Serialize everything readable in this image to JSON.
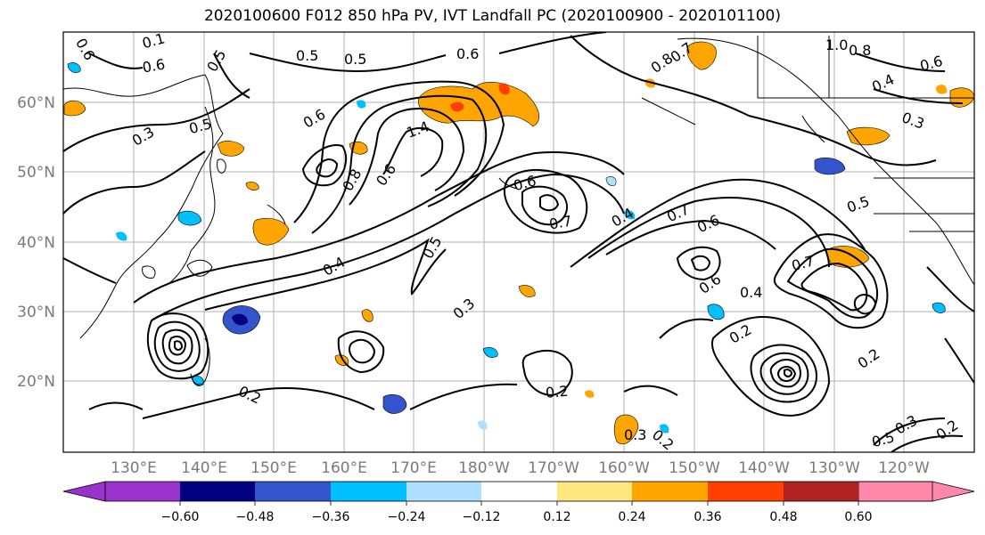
{
  "title": "2020100600 F012 850 hPa PV, IVT Landfall PC (2020100900 - 2020101100)",
  "lat_labels": [
    "60°N",
    "50°N",
    "40°N",
    "30°N",
    "20°N"
  ],
  "lon_labels": [
    "130°E",
    "140°E",
    "150°E",
    "160°E",
    "170°E",
    "180°W",
    "170°W",
    "160°W",
    "150°W",
    "140°W",
    "130°W",
    "120°W"
  ],
  "contour_labels": [
    {
      "text": "0.6"
    },
    {
      "text": "0.1"
    },
    {
      "text": "0.6"
    },
    {
      "text": "0.5"
    },
    {
      "text": "0.5"
    },
    {
      "text": "0.5"
    },
    {
      "text": "0.6"
    },
    {
      "text": "0.8"
    },
    {
      "text": "0.7"
    },
    {
      "text": "1.0"
    },
    {
      "text": "0.8"
    },
    {
      "text": "0.6"
    },
    {
      "text": "0.4"
    },
    {
      "text": "0.3"
    },
    {
      "text": "0.5"
    },
    {
      "text": "0.3"
    },
    {
      "text": "0.6"
    },
    {
      "text": "1.4"
    },
    {
      "text": "0.8"
    },
    {
      "text": "0.6"
    },
    {
      "text": "0.6"
    },
    {
      "text": "0.7"
    },
    {
      "text": "0.4"
    },
    {
      "text": "0.7"
    },
    {
      "text": "0.6"
    },
    {
      "text": "0.5"
    },
    {
      "text": "0.4"
    },
    {
      "text": "0.5"
    },
    {
      "text": "0.3"
    },
    {
      "text": "0.6"
    },
    {
      "text": "0.4"
    },
    {
      "text": "0.7"
    },
    {
      "text": "0.2"
    },
    {
      "text": "0.2"
    },
    {
      "text": "0.2"
    },
    {
      "text": "0.2"
    },
    {
      "text": "0.3"
    },
    {
      "text": "0.3"
    },
    {
      "text": "0.5"
    },
    {
      "text": "0.2"
    },
    {
      "text": "0.2"
    }
  ],
  "colorbar": {
    "colors": [
      "#9933cc",
      "#000080",
      "#3355cc",
      "#00bfff",
      "#b0e0ff",
      "#ffffff",
      "#ffe680",
      "#ffa500",
      "#ff4000",
      "#b22222",
      "#ff88aa"
    ],
    "tick_labels": [
      "−0.60",
      "−0.48",
      "−0.36",
      "−0.24",
      "−0.12",
      "0.12",
      "0.24",
      "0.36",
      "0.48",
      "0.60"
    ]
  }
}
